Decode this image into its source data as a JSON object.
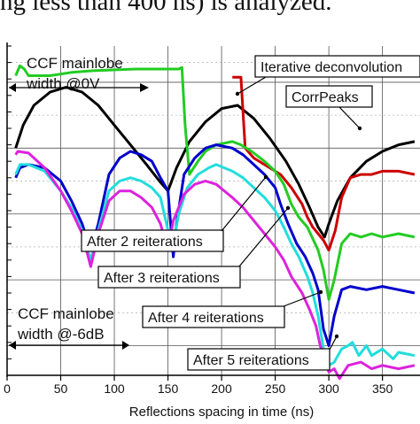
{
  "caption_text": "ng less than 400 ns) is analyzed.",
  "chart_data": {
    "type": "line",
    "title": "",
    "xlabel": "Reflections spacing in time (ns)",
    "ylabel": "",
    "xlim": [
      0,
      385
    ],
    "ylim": [
      0,
      10
    ],
    "x_ticks": [
      0,
      50,
      100,
      150,
      200,
      250,
      300,
      350
    ],
    "x_tick_labels": [
      "0",
      "50",
      "100",
      "150",
      "200",
      "250",
      "300",
      "350"
    ],
    "grid": true,
    "series": [
      {
        "name": "CorrPeaks",
        "color": "#000000",
        "points": [
          [
            8,
            6.9
          ],
          [
            15,
            7.6
          ],
          [
            25,
            8.2
          ],
          [
            40,
            8.6
          ],
          [
            55,
            8.75
          ],
          [
            70,
            8.6
          ],
          [
            85,
            8.2
          ],
          [
            100,
            7.6
          ],
          [
            115,
            7.0
          ],
          [
            130,
            6.4
          ],
          [
            142,
            5.9
          ],
          [
            150,
            5.6
          ],
          [
            158,
            6.3
          ],
          [
            170,
            7.1
          ],
          [
            185,
            7.7
          ],
          [
            200,
            8.1
          ],
          [
            215,
            8.2
          ],
          [
            230,
            7.8
          ],
          [
            245,
            7.2
          ],
          [
            260,
            6.5
          ],
          [
            272,
            5.8
          ],
          [
            282,
            5.1
          ],
          [
            290,
            4.5
          ],
          [
            296,
            4.2
          ],
          [
            300,
            4.6
          ],
          [
            308,
            5.3
          ],
          [
            320,
            6.0
          ],
          [
            335,
            6.5
          ],
          [
            350,
            6.8
          ],
          [
            365,
            7.0
          ],
          [
            380,
            7.1
          ]
        ]
      },
      {
        "name": "Iterative deconvolution",
        "color": "#cc0000",
        "points": [
          [
            210,
            9.05
          ],
          [
            218,
            9.05
          ],
          [
            222,
            6.9
          ],
          [
            230,
            6.6
          ],
          [
            245,
            6.3
          ],
          [
            255,
            6.1
          ],
          [
            265,
            5.7
          ],
          [
            275,
            5.2
          ],
          [
            280,
            4.8
          ],
          [
            285,
            4.5
          ],
          [
            290,
            4.3
          ],
          [
            295,
            4.1
          ],
          [
            300,
            3.8
          ],
          [
            306,
            4.4
          ],
          [
            312,
            5.4
          ],
          [
            320,
            6.0
          ],
          [
            330,
            6.1
          ],
          [
            340,
            6.1
          ],
          [
            350,
            6.2
          ],
          [
            365,
            6.2
          ],
          [
            380,
            6.1
          ]
        ]
      },
      {
        "name": "After 2 reiterations",
        "color": "#22cc22",
        "points": [
          [
            8,
            9.1
          ],
          [
            12,
            9.4
          ],
          [
            16,
            9.3
          ],
          [
            20,
            9.1
          ],
          [
            40,
            9.1
          ],
          [
            60,
            9.2
          ],
          [
            80,
            9.25
          ],
          [
            120,
            9.3
          ],
          [
            160,
            9.3
          ],
          [
            163,
            9.35
          ],
          [
            166,
            7.6
          ],
          [
            170,
            6.1
          ],
          [
            178,
            6.5
          ],
          [
            185,
            6.8
          ],
          [
            195,
            7.0
          ],
          [
            210,
            7.1
          ],
          [
            218,
            7.0
          ],
          [
            228,
            6.8
          ],
          [
            240,
            6.5
          ],
          [
            250,
            6.2
          ],
          [
            258,
            5.8
          ],
          [
            265,
            5.2
          ],
          [
            272,
            4.8
          ],
          [
            280,
            4.5
          ],
          [
            290,
            3.8
          ],
          [
            295,
            3.2
          ],
          [
            300,
            2.3
          ],
          [
            305,
            2.9
          ],
          [
            312,
            4.0
          ],
          [
            320,
            4.3
          ],
          [
            330,
            4.2
          ],
          [
            340,
            4.3
          ],
          [
            350,
            4.2
          ],
          [
            365,
            4.3
          ],
          [
            380,
            4.2
          ]
        ]
      },
      {
        "name": "",
        "color": "#0000cc",
        "points": [
          [
            8,
            6.0
          ],
          [
            12,
            6.3
          ],
          [
            20,
            6.4
          ],
          [
            35,
            6.3
          ],
          [
            50,
            5.9
          ],
          [
            60,
            5.3
          ],
          [
            70,
            4.6
          ],
          [
            78,
            3.8
          ],
          [
            85,
            4.6
          ],
          [
            95,
            6.1
          ],
          [
            105,
            6.6
          ],
          [
            115,
            6.8
          ],
          [
            125,
            6.7
          ],
          [
            135,
            6.5
          ],
          [
            143,
            6.0
          ],
          [
            150,
            5.6
          ],
          [
            155,
            3.6
          ],
          [
            158,
            4.6
          ],
          [
            165,
            6.1
          ],
          [
            175,
            6.6
          ],
          [
            185,
            6.9
          ],
          [
            195,
            7.0
          ],
          [
            210,
            6.9
          ],
          [
            220,
            6.7
          ],
          [
            230,
            6.4
          ],
          [
            240,
            6.1
          ],
          [
            250,
            5.7
          ],
          [
            255,
            5.2
          ],
          [
            262,
            4.6
          ],
          [
            270,
            4.0
          ],
          [
            278,
            3.6
          ],
          [
            285,
            3.1
          ],
          [
            290,
            2.6
          ],
          [
            295,
            1.4
          ],
          [
            300,
            0.9
          ],
          [
            305,
            1.8
          ],
          [
            312,
            2.6
          ],
          [
            320,
            2.7
          ],
          [
            335,
            2.6
          ],
          [
            350,
            2.7
          ],
          [
            365,
            2.6
          ],
          [
            380,
            2.5
          ]
        ]
      },
      {
        "name": "",
        "color": "#22dddd",
        "points": [
          [
            8,
            6.1
          ],
          [
            12,
            6.4
          ],
          [
            20,
            6.4
          ],
          [
            35,
            6.2
          ],
          [
            50,
            5.6
          ],
          [
            60,
            5.1
          ],
          [
            70,
            4.4
          ],
          [
            78,
            3.5
          ],
          [
            85,
            4.4
          ],
          [
            95,
            5.6
          ],
          [
            105,
            5.9
          ],
          [
            115,
            6.0
          ],
          [
            125,
            5.9
          ],
          [
            135,
            5.7
          ],
          [
            143,
            5.4
          ],
          [
            150,
            4.4
          ],
          [
            155,
            4.0
          ],
          [
            160,
            4.9
          ],
          [
            168,
            5.7
          ],
          [
            178,
            6.1
          ],
          [
            188,
            6.3
          ],
          [
            195,
            6.4
          ],
          [
            210,
            6.2
          ],
          [
            220,
            6.0
          ],
          [
            230,
            5.7
          ],
          [
            240,
            5.4
          ],
          [
            250,
            5.0
          ],
          [
            258,
            4.5
          ],
          [
            265,
            4.0
          ],
          [
            272,
            3.6
          ],
          [
            280,
            3.0
          ],
          [
            285,
            2.5
          ],
          [
            290,
            1.8
          ],
          [
            295,
            0.8
          ],
          [
            300,
            0.3
          ],
          [
            305,
            0.4
          ],
          [
            312,
            0.8
          ],
          [
            318,
            0.9
          ],
          [
            322,
            1.0
          ],
          [
            328,
            0.6
          ],
          [
            335,
            0.9
          ],
          [
            340,
            0.6
          ],
          [
            350,
            0.8
          ],
          [
            360,
            0.5
          ],
          [
            365,
            0.7
          ],
          [
            380,
            0.6
          ]
        ]
      },
      {
        "name": "",
        "color": "#dd22dd",
        "points": [
          [
            8,
            6.7
          ],
          [
            10,
            6.8
          ],
          [
            20,
            6.75
          ],
          [
            35,
            6.3
          ],
          [
            50,
            5.6
          ],
          [
            60,
            5.0
          ],
          [
            70,
            4.3
          ],
          [
            78,
            3.3
          ],
          [
            85,
            4.3
          ],
          [
            95,
            5.3
          ],
          [
            105,
            5.6
          ],
          [
            115,
            5.6
          ],
          [
            125,
            5.4
          ],
          [
            135,
            5.1
          ],
          [
            143,
            4.6
          ],
          [
            150,
            3.8
          ],
          [
            155,
            4.7
          ],
          [
            165,
            5.5
          ],
          [
            175,
            5.8
          ],
          [
            185,
            5.9
          ],
          [
            195,
            5.8
          ],
          [
            210,
            5.4
          ],
          [
            220,
            5.1
          ],
          [
            230,
            4.7
          ],
          [
            240,
            4.3
          ],
          [
            250,
            3.9
          ],
          [
            258,
            3.5
          ],
          [
            265,
            3.0
          ],
          [
            275,
            2.5
          ],
          [
            282,
            2.0
          ],
          [
            288,
            1.5
          ],
          [
            292,
            0.9
          ],
          [
            296,
            0.5
          ],
          [
            300,
            0.1
          ],
          [
            305,
            0.2
          ],
          [
            310,
            -0.1
          ],
          [
            318,
            0.3
          ],
          [
            330,
            0.4
          ],
          [
            340,
            0.2
          ],
          [
            350,
            0.3
          ],
          [
            365,
            0.2
          ],
          [
            380,
            0.3
          ]
        ]
      }
    ],
    "annotations": [
      {
        "text_lines": [
          "CCF mainlobe",
          "width @0V"
        ],
        "type": "label"
      },
      {
        "text_lines": [
          "CCF mainlobe",
          "width @-6dB"
        ],
        "type": "label"
      },
      {
        "text_lines": [
          "Iterative deconvolution"
        ],
        "type": "label-box"
      },
      {
        "text_lines": [
          "CorrPeaks"
        ],
        "type": "label-box"
      },
      {
        "text_lines": [
          "After 2 reiterations"
        ],
        "type": "label-box"
      },
      {
        "text_lines": [
          "After 3 reiterations"
        ],
        "type": "label-box"
      },
      {
        "text_lines": [
          "After 4 reiterations"
        ],
        "type": "label-box"
      },
      {
        "text_lines": [
          "After 5 reiterations"
        ],
        "type": "label-box"
      }
    ]
  }
}
